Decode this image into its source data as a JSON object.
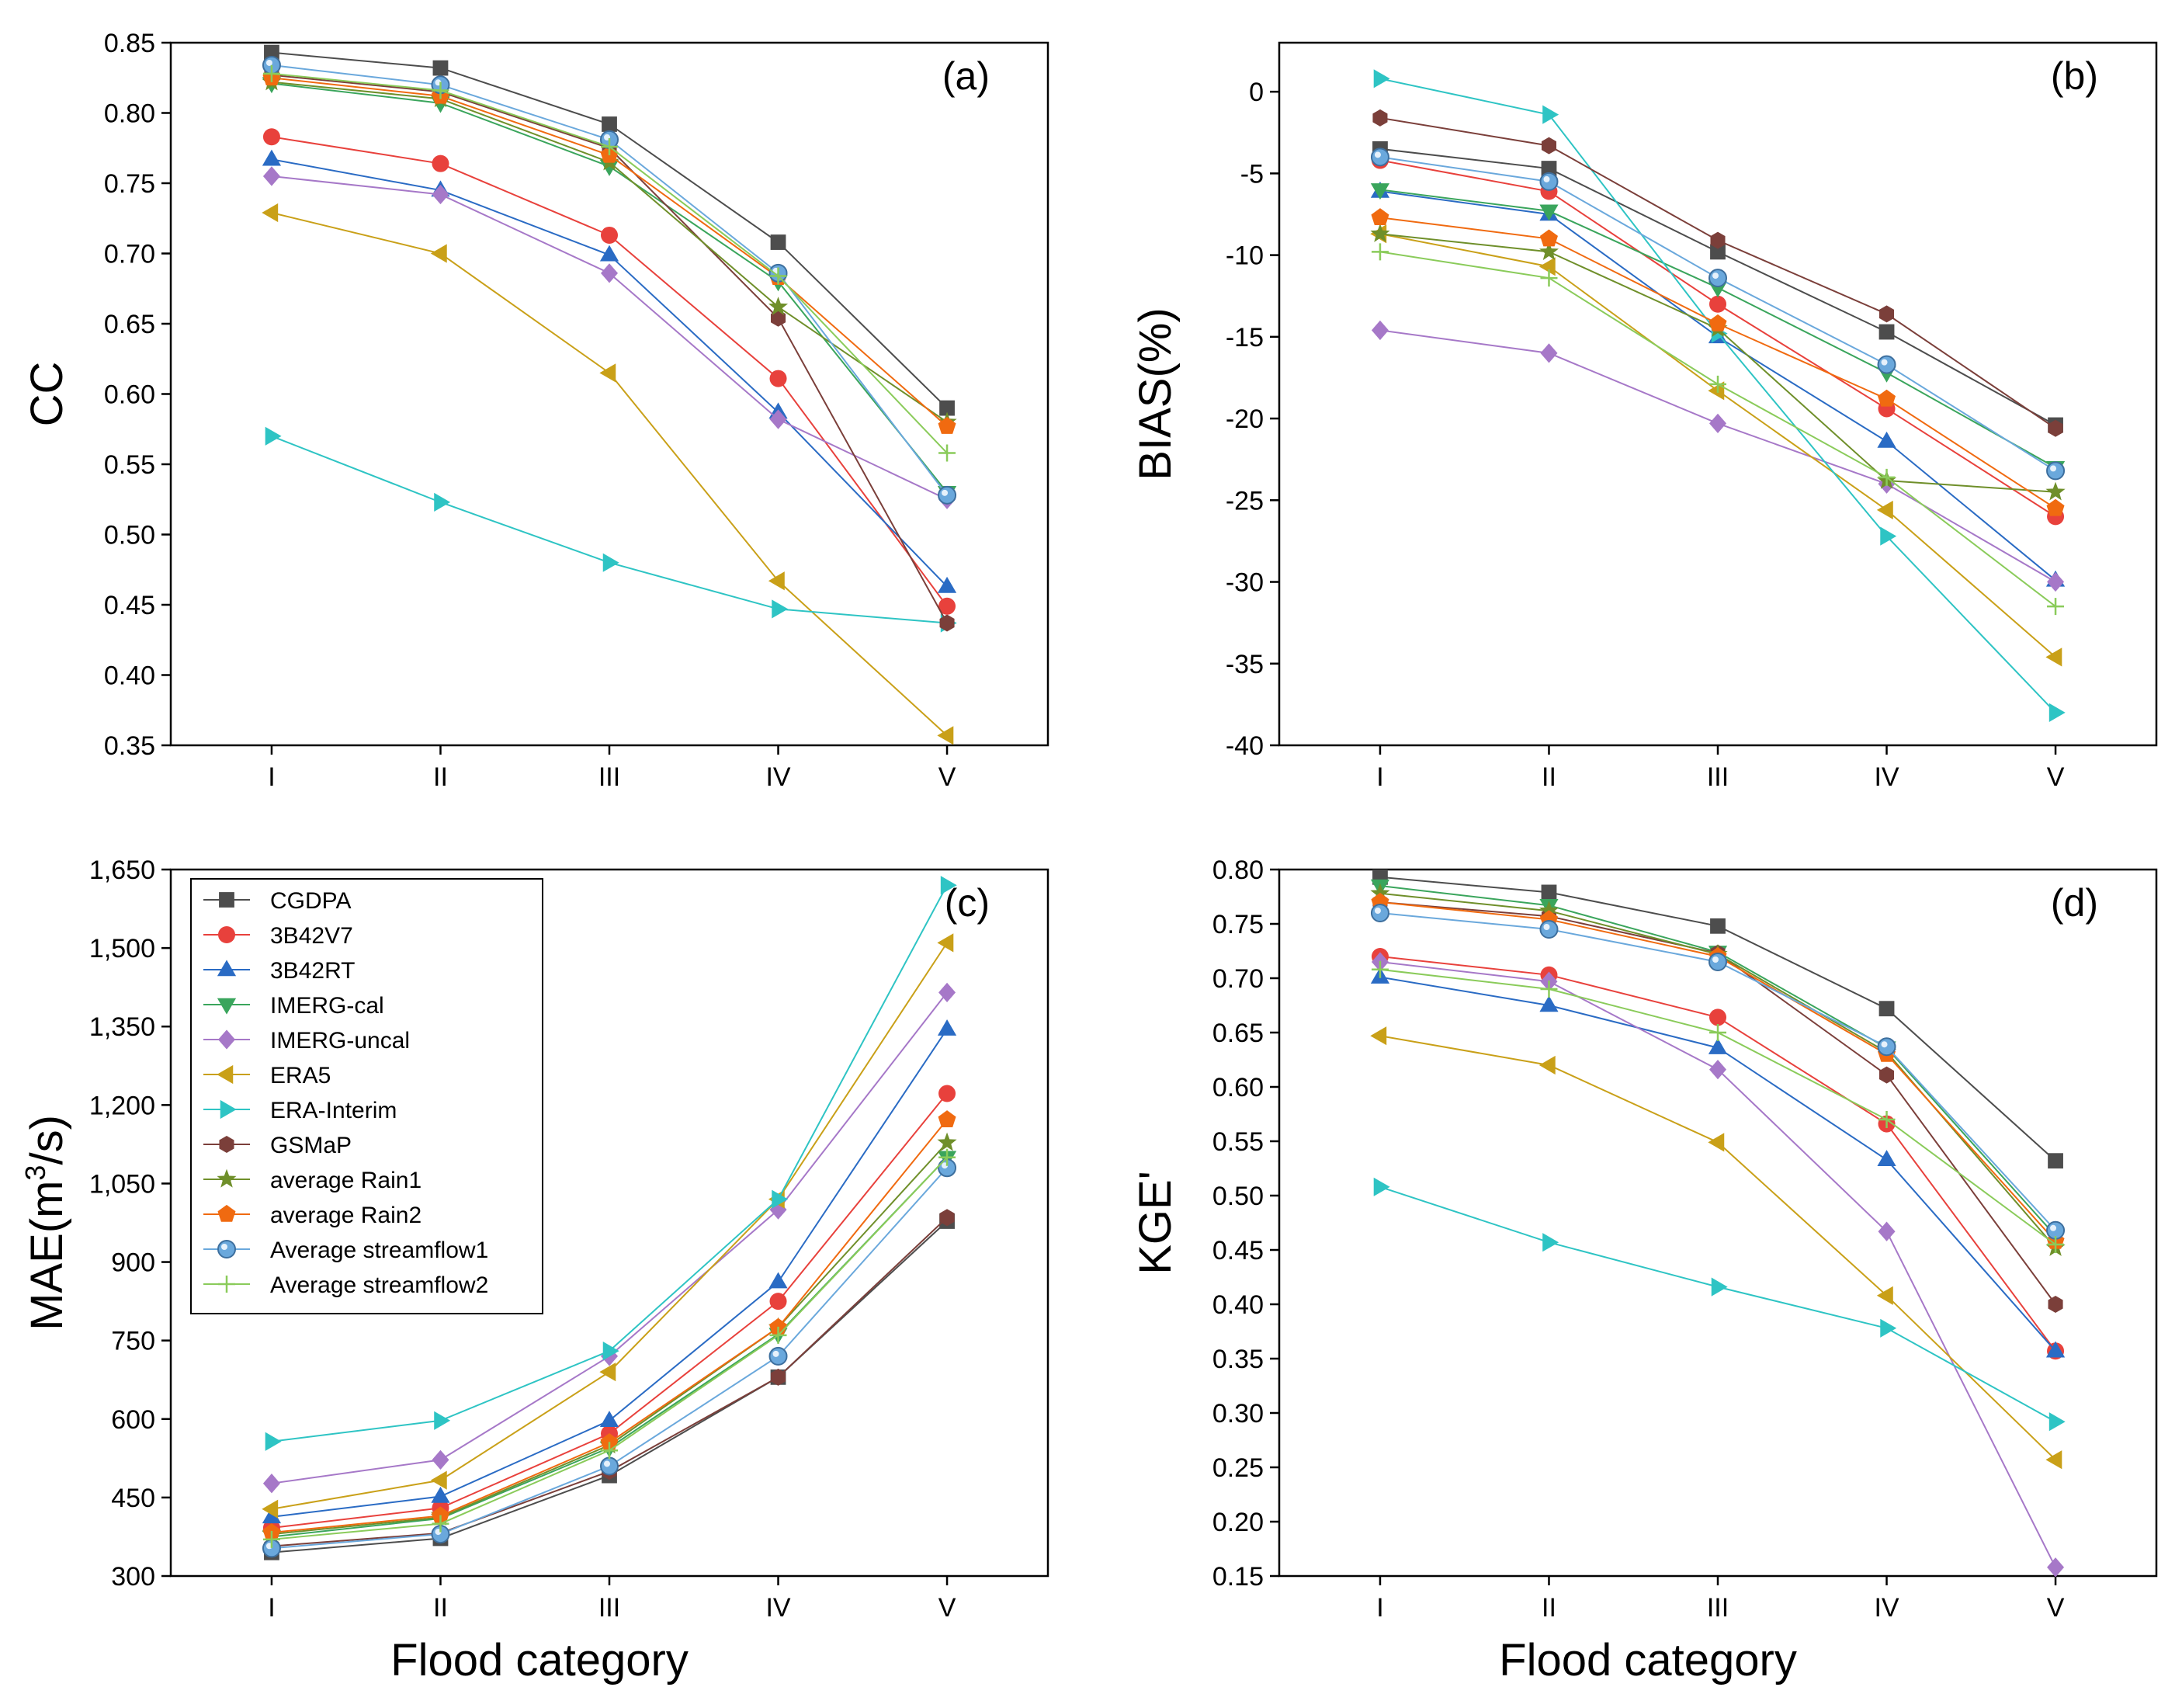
{
  "colors": {
    "CGDPA": "#4d4d4d",
    "3B42V7": "#e8413c",
    "3B42RT": "#2a6bc4",
    "IMERG-cal": "#3aa55c",
    "IMERG-uncal": "#a678c8",
    "ERA5": "#c9a018",
    "ERA-Interim": "#2ec4c4",
    "GSMaP": "#7b3f3a",
    "average Rain1": "#6f8f2a",
    "average Rain2": "#f06a10",
    "Average streamflow1": "#6aa8dc",
    "Average streamflow2": "#8acb5a"
  },
  "legend": [
    {
      "name": "CGDPA",
      "marker": "square"
    },
    {
      "name": "3B42V7",
      "marker": "circle"
    },
    {
      "name": "3B42RT",
      "marker": "triangle-up"
    },
    {
      "name": "IMERG-cal",
      "marker": "triangle-down"
    },
    {
      "name": "IMERG-uncal",
      "marker": "diamond"
    },
    {
      "name": "ERA5",
      "marker": "triangle-left"
    },
    {
      "name": "ERA-Interim",
      "marker": "triangle-right"
    },
    {
      "name": "GSMaP",
      "marker": "hexagon"
    },
    {
      "name": "average Rain1",
      "marker": "star"
    },
    {
      "name": "average Rain2",
      "marker": "pentagon"
    },
    {
      "name": "Average streamflow1",
      "marker": "sphere"
    },
    {
      "name": "Average streamflow2",
      "marker": "plus"
    }
  ],
  "chart_data": [
    {
      "type": "line",
      "panel_label": "(a)",
      "categories": [
        "I",
        "II",
        "III",
        "IV",
        "V"
      ],
      "xlabel": "",
      "ylabel": "CC",
      "ylim": [
        0.35,
        0.85
      ],
      "yticks": [
        0.35,
        0.4,
        0.45,
        0.5,
        0.55,
        0.6,
        0.65,
        0.7,
        0.75,
        0.8,
        0.85
      ],
      "ytick_labels": [
        "0.35",
        "0.40",
        "0.45",
        "0.50",
        "0.55",
        "0.60",
        "0.65",
        "0.70",
        "0.75",
        "0.80",
        "0.85"
      ],
      "series": [
        {
          "name": "CGDPA",
          "values": [
            0.843,
            0.832,
            0.792,
            0.708,
            0.59
          ]
        },
        {
          "name": "3B42V7",
          "values": [
            0.783,
            0.764,
            0.713,
            0.611,
            0.449
          ]
        },
        {
          "name": "3B42RT",
          "values": [
            0.767,
            0.745,
            0.699,
            0.587,
            0.463
          ]
        },
        {
          "name": "IMERG-cal",
          "values": [
            0.821,
            0.807,
            0.762,
            0.68,
            0.53
          ]
        },
        {
          "name": "IMERG-uncal",
          "values": [
            0.755,
            0.742,
            0.686,
            0.582,
            0.525
          ]
        },
        {
          "name": "ERA5",
          "values": [
            0.729,
            0.7,
            0.615,
            0.467,
            0.357
          ]
        },
        {
          "name": "ERA-Interim",
          "values": [
            0.57,
            0.523,
            0.48,
            0.447,
            0.437
          ]
        },
        {
          "name": "GSMaP",
          "values": [
            0.827,
            0.815,
            0.775,
            0.654,
            0.437
          ]
        },
        {
          "name": "average Rain1",
          "values": [
            0.822,
            0.81,
            0.765,
            0.662,
            0.58
          ]
        },
        {
          "name": "average Rain2",
          "values": [
            0.825,
            0.812,
            0.77,
            0.683,
            0.577
          ]
        },
        {
          "name": "Average streamflow1",
          "values": [
            0.834,
            0.82,
            0.781,
            0.686,
            0.528
          ]
        },
        {
          "name": "Average streamflow2",
          "values": [
            0.828,
            0.816,
            0.776,
            0.684,
            0.558
          ]
        }
      ]
    },
    {
      "type": "line",
      "panel_label": "(b)",
      "categories": [
        "I",
        "II",
        "III",
        "IV",
        "V"
      ],
      "xlabel": "",
      "ylabel": "BIAS(%)",
      "ylim": [
        -40,
        3
      ],
      "yticks": [
        -40,
        -35,
        -30,
        -25,
        -20,
        -15,
        -10,
        -5,
        0
      ],
      "ytick_labels": [
        "-40",
        "-35",
        "-30",
        "-25",
        "-20",
        "-15",
        "-10",
        "-5",
        "0"
      ],
      "series": [
        {
          "name": "CGDPA",
          "values": [
            -3.5,
            -4.7,
            -9.8,
            -14.7,
            -20.4
          ]
        },
        {
          "name": "3B42V7",
          "values": [
            -4.2,
            -6.1,
            -13.0,
            -19.4,
            -26.0
          ]
        },
        {
          "name": "3B42RT",
          "values": [
            -6.1,
            -7.5,
            -15.0,
            -21.4,
            -29.9
          ]
        },
        {
          "name": "IMERG-cal",
          "values": [
            -6.0,
            -7.3,
            -12.0,
            -17.2,
            -23.0
          ]
        },
        {
          "name": "IMERG-uncal",
          "values": [
            -14.6,
            -16.0,
            -20.3,
            -24.0,
            -30.0
          ]
        },
        {
          "name": "ERA5",
          "values": [
            -8.7,
            -10.7,
            -18.3,
            -25.6,
            -34.6
          ]
        },
        {
          "name": "ERA-Interim",
          "values": [
            0.8,
            -1.4,
            -14.8,
            -27.2,
            -38.0
          ]
        },
        {
          "name": "GSMaP",
          "values": [
            -1.6,
            -3.3,
            -9.1,
            -13.6,
            -20.6
          ]
        },
        {
          "name": "average Rain1",
          "values": [
            -8.7,
            -9.8,
            -14.5,
            -23.8,
            -24.5
          ]
        },
        {
          "name": "average Rain2",
          "values": [
            -7.7,
            -9.0,
            -14.2,
            -18.8,
            -25.5
          ]
        },
        {
          "name": "Average streamflow1",
          "values": [
            -4.0,
            -5.5,
            -11.4,
            -16.7,
            -23.2
          ]
        },
        {
          "name": "Average streamflow2",
          "values": [
            -9.8,
            -11.4,
            -17.9,
            -23.6,
            -31.5
          ]
        }
      ]
    },
    {
      "type": "line",
      "panel_label": "(c)",
      "categories": [
        "I",
        "II",
        "III",
        "IV",
        "V"
      ],
      "xlabel": "Flood category",
      "ylabel": "MAE(m³/s)",
      "ylim": [
        300,
        1650
      ],
      "yticks": [
        300,
        450,
        600,
        750,
        900,
        1050,
        1200,
        1350,
        1500,
        1650
      ],
      "ytick_labels": [
        "300",
        "450",
        "600",
        "750",
        "900",
        "1,050",
        "1,200",
        "1,350",
        "1,500",
        "1,650"
      ],
      "series": [
        {
          "name": "CGDPA",
          "values": [
            345,
            372,
            492,
            680,
            978
          ]
        },
        {
          "name": "3B42V7",
          "values": [
            392,
            430,
            572,
            825,
            1222
          ]
        },
        {
          "name": "3B42RT",
          "values": [
            413,
            452,
            597,
            862,
            1345
          ]
        },
        {
          "name": "IMERG-cal",
          "values": [
            375,
            410,
            545,
            762,
            1100
          ]
        },
        {
          "name": "IMERG-uncal",
          "values": [
            477,
            522,
            720,
            1000,
            1415
          ]
        },
        {
          "name": "ERA5",
          "values": [
            428,
            483,
            690,
            1020,
            1510
          ]
        },
        {
          "name": "ERA-Interim",
          "values": [
            557,
            597,
            730,
            1020,
            1620
          ]
        },
        {
          "name": "GSMaP",
          "values": [
            357,
            382,
            500,
            680,
            985
          ]
        },
        {
          "name": "average Rain1",
          "values": [
            380,
            412,
            550,
            775,
            1128
          ]
        },
        {
          "name": "average Rain2",
          "values": [
            383,
            415,
            555,
            775,
            1172
          ]
        },
        {
          "name": "Average streamflow1",
          "values": [
            353,
            380,
            510,
            720,
            1080
          ]
        },
        {
          "name": "Average streamflow2",
          "values": [
            370,
            400,
            540,
            760,
            1100
          ]
        }
      ]
    },
    {
      "type": "line",
      "panel_label": "(d)",
      "categories": [
        "I",
        "II",
        "III",
        "IV",
        "V"
      ],
      "xlabel": "Flood category",
      "ylabel": "KGE'",
      "ylim": [
        0.15,
        0.8
      ],
      "yticks": [
        0.15,
        0.2,
        0.25,
        0.3,
        0.35,
        0.4,
        0.45,
        0.5,
        0.55,
        0.6,
        0.65,
        0.7,
        0.75,
        0.8
      ],
      "ytick_labels": [
        "0.15",
        "0.20",
        "0.25",
        "0.30",
        "0.35",
        "0.40",
        "0.45",
        "0.50",
        "0.55",
        "0.60",
        "0.65",
        "0.70",
        "0.75",
        "0.80"
      ],
      "series": [
        {
          "name": "CGDPA",
          "values": [
            0.793,
            0.779,
            0.748,
            0.672,
            0.532
          ]
        },
        {
          "name": "3B42V7",
          "values": [
            0.72,
            0.703,
            0.664,
            0.566,
            0.357
          ]
        },
        {
          "name": "3B42RT",
          "values": [
            0.701,
            0.675,
            0.636,
            0.533,
            0.357
          ]
        },
        {
          "name": "IMERG-cal",
          "values": [
            0.785,
            0.767,
            0.724,
            0.636,
            0.463
          ]
        },
        {
          "name": "IMERG-uncal",
          "values": [
            0.715,
            0.697,
            0.616,
            0.467,
            0.158
          ]
        },
        {
          "name": "ERA5",
          "values": [
            0.647,
            0.62,
            0.549,
            0.408,
            0.257
          ]
        },
        {
          "name": "ERA-Interim",
          "values": [
            0.508,
            0.457,
            0.416,
            0.378,
            0.292
          ]
        },
        {
          "name": "GSMaP",
          "values": [
            0.77,
            0.757,
            0.723,
            0.611,
            0.4
          ]
        },
        {
          "name": "average Rain1",
          "values": [
            0.778,
            0.762,
            0.722,
            0.632,
            0.452
          ]
        },
        {
          "name": "average Rain2",
          "values": [
            0.77,
            0.754,
            0.72,
            0.63,
            0.458
          ]
        },
        {
          "name": "Average streamflow1",
          "values": [
            0.76,
            0.745,
            0.715,
            0.637,
            0.468
          ]
        },
        {
          "name": "Average streamflow2",
          "values": [
            0.708,
            0.69,
            0.65,
            0.57,
            0.455
          ]
        }
      ]
    }
  ]
}
